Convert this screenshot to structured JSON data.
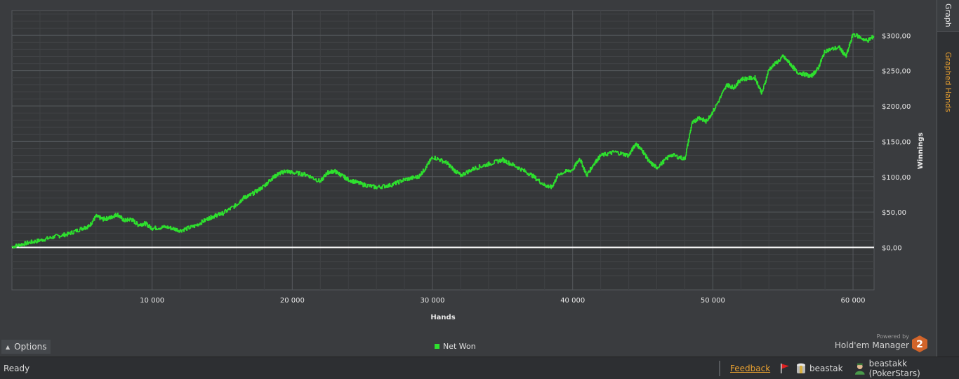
{
  "side_tabs": [
    {
      "label": "Graph",
      "active": true
    },
    {
      "label": "Graphed Hands",
      "active": false
    }
  ],
  "options": {
    "label": "Options"
  },
  "chart_data": {
    "type": "line",
    "xlabel": "Hands",
    "ylabel": "Winnings",
    "xlim": [
      0,
      61500
    ],
    "ylim": [
      -60000,
      335000
    ],
    "x_ticks": [
      10000,
      20000,
      30000,
      40000,
      50000,
      60000
    ],
    "x_tick_labels": [
      "10 000",
      "20 000",
      "30 000",
      "40 000",
      "50 000",
      "60 000"
    ],
    "y_ticks": [
      0,
      50,
      100,
      150,
      200,
      250,
      300
    ],
    "y_tick_labels": [
      "$0,00",
      "$50,00",
      "$100,00",
      "$150,00",
      "$200,00",
      "$250,00",
      "$300,00"
    ],
    "y_unit": "dollars",
    "grid": true,
    "legend": "bottom-center",
    "series": [
      {
        "name": "Net Won",
        "color": "#2ee02e",
        "x": [
          0,
          1000,
          2000,
          3000,
          4000,
          5000,
          5500,
          6000,
          6500,
          7000,
          7500,
          8000,
          8500,
          9000,
          9500,
          10000,
          11000,
          12000,
          13000,
          14000,
          14500,
          15000,
          16000,
          16500,
          17000,
          18000,
          18500,
          19000,
          19500,
          20000,
          21000,
          22000,
          22500,
          23000,
          23500,
          24000,
          25000,
          26000,
          27000,
          28000,
          29000,
          29500,
          30000,
          31000,
          31500,
          32000,
          33000,
          34000,
          35000,
          36000,
          37000,
          38000,
          38500,
          39000,
          40000,
          40500,
          41000,
          41500,
          42000,
          43000,
          44000,
          44500,
          45000,
          45500,
          46000,
          47000,
          48000,
          48500,
          49000,
          49500,
          50000,
          51000,
          51500,
          52000,
          53000,
          53500,
          54000,
          55000,
          55500,
          56000,
          57000,
          57500,
          58000,
          59000,
          59500,
          60000,
          61000,
          61500
        ],
        "values": [
          1,
          6,
          10,
          15,
          19,
          27,
          30,
          44,
          40,
          42,
          47,
          38,
          40,
          32,
          34,
          27,
          29,
          24,
          30,
          41,
          45,
          48,
          60,
          70,
          74,
          87,
          97,
          104,
          108,
          106,
          103,
          93,
          106,
          108,
          102,
          96,
          89,
          85,
          88,
          96,
          100,
          112,
          128,
          120,
          110,
          102,
          112,
          118,
          124,
          114,
          103,
          88,
          85,
          104,
          110,
          126,
          102,
          118,
          130,
          135,
          130,
          147,
          136,
          120,
          113,
          131,
          125,
          175,
          184,
          178,
          192,
          230,
          226,
          238,
          240,
          218,
          252,
          270,
          260,
          248,
          242,
          253,
          278,
          283,
          270,
          302,
          292,
          299
        ]
      }
    ]
  },
  "brand": {
    "powered_by": "Powered by",
    "product": "Hold'em Manager",
    "logo_digit": "2"
  },
  "status_bar": {
    "status": "Ready",
    "feedback": "Feedback",
    "player_database": "beastak",
    "player_site": "beastakk (PokerStars)"
  }
}
